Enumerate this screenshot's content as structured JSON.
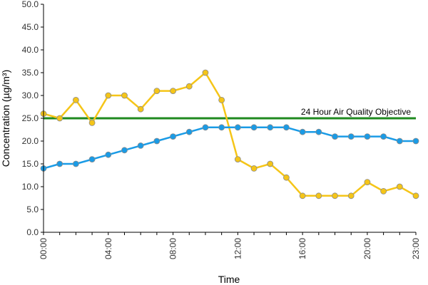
{
  "chart_data": {
    "type": "line",
    "title": "",
    "xlabel": "Time",
    "ylabel": "Concentration (µg/m³)",
    "ylim": [
      0,
      50
    ],
    "yticks": [
      "0.0",
      "5.0",
      "10.0",
      "15.0",
      "20.0",
      "25.0",
      "30.0",
      "35.0",
      "40.0",
      "45.0",
      "50.0"
    ],
    "x_hours": [
      0,
      1,
      2,
      3,
      4,
      5,
      6,
      7,
      8,
      9,
      10,
      11,
      12,
      13,
      14,
      15,
      16,
      17,
      18,
      19,
      20,
      21,
      22,
      23
    ],
    "xticks": [
      {
        "hour": 0,
        "label": "00:00"
      },
      {
        "hour": 4,
        "label": "04:00"
      },
      {
        "hour": 8,
        "label": "08:00"
      },
      {
        "hour": 12,
        "label": "12:00"
      },
      {
        "hour": 16,
        "label": "16:00"
      },
      {
        "hour": 20,
        "label": "20:00"
      },
      {
        "hour": 23,
        "label": "23:00"
      }
    ],
    "grid": false,
    "legend": "none",
    "series": [
      {
        "color": "#f5c518",
        "marker": "circle",
        "values": [
          26,
          25,
          29,
          24,
          30,
          30,
          27,
          31,
          31,
          32,
          35,
          29,
          16,
          14,
          15,
          12,
          8,
          8,
          8,
          8,
          11,
          9,
          10,
          8
        ]
      },
      {
        "color": "#1a9be6",
        "marker": "circle",
        "values": [
          14,
          15,
          15,
          16,
          17,
          18,
          19,
          20,
          21,
          22,
          23,
          23,
          23,
          23,
          23,
          23,
          22,
          22,
          21,
          21,
          21,
          21,
          20,
          20
        ]
      }
    ],
    "reference_line": {
      "label": "24 Hour Air Quality Objective",
      "value": 25,
      "color": "#1f8a1f"
    }
  }
}
